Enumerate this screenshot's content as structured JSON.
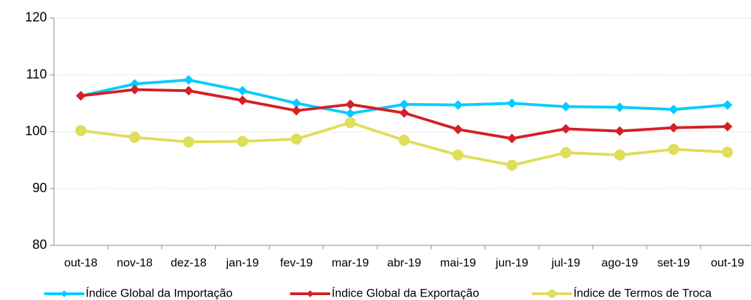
{
  "chart_data": {
    "type": "line",
    "categories": [
      "out-18",
      "nov-18",
      "dez-18",
      "jan-19",
      "fev-19",
      "mar-19",
      "abr-19",
      "mai-19",
      "jun-19",
      "jul-19",
      "ago-19",
      "set-19",
      "out-19"
    ],
    "series": [
      {
        "name": "Índice Global da Importação",
        "color": "#00ccff",
        "marker": "diamond",
        "values": [
          106.3,
          108.4,
          109.1,
          107.2,
          105.0,
          103.2,
          104.8,
          104.7,
          105.0,
          104.4,
          104.3,
          103.9,
          104.7
        ]
      },
      {
        "name": "Índice Global da Exportação",
        "color": "#d42027",
        "marker": "diamond",
        "values": [
          106.3,
          107.4,
          107.2,
          105.5,
          103.7,
          104.8,
          103.3,
          100.4,
          98.8,
          100.5,
          100.1,
          100.7,
          100.9
        ]
      },
      {
        "name": "Índice de Termos de Troca",
        "color": "#dede5a",
        "marker": "circle",
        "values": [
          100.2,
          99.0,
          98.2,
          98.3,
          98.7,
          101.6,
          98.5,
          95.9,
          94.1,
          96.3,
          95.9,
          96.9,
          96.4
        ]
      }
    ],
    "ylim": [
      80,
      120
    ],
    "yticks": [
      80,
      90,
      100,
      110,
      120
    ],
    "grid": true,
    "legend": "bottom"
  }
}
